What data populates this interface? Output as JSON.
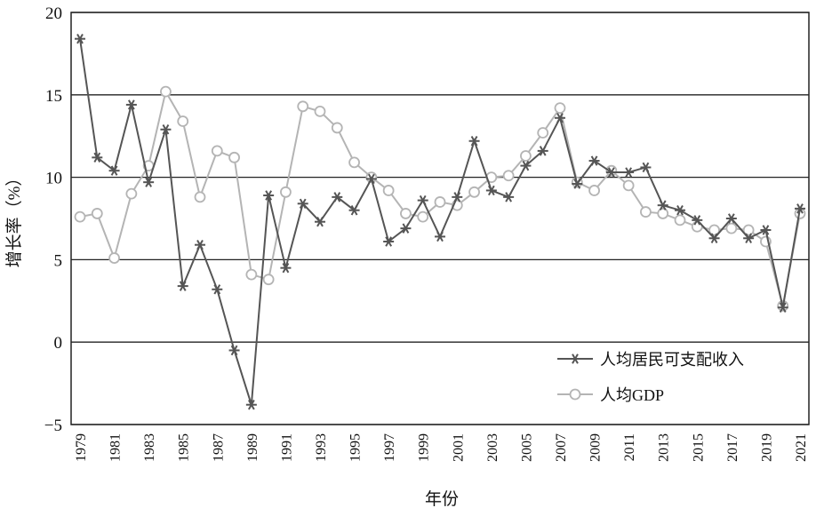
{
  "chart_data": {
    "type": "line",
    "xlabel": "年份",
    "ylabel": "增长率（%）",
    "ylim": [
      -5,
      20
    ],
    "yticks": [
      "20",
      "15",
      "10",
      "5",
      "0",
      "−5"
    ],
    "grid": "horizontal",
    "legend_position": "bottom-right",
    "x": [
      1979,
      1980,
      1981,
      1982,
      1983,
      1984,
      1985,
      1986,
      1987,
      1988,
      1989,
      1990,
      1991,
      1992,
      1993,
      1994,
      1995,
      1996,
      1997,
      1998,
      1999,
      2000,
      2001,
      2002,
      2003,
      2004,
      2005,
      2006,
      2007,
      2008,
      2009,
      2010,
      2011,
      2012,
      2013,
      2014,
      2015,
      2016,
      2017,
      2018,
      2019,
      2020,
      2021
    ],
    "xtick_labels": [
      "1979",
      "1981",
      "1983",
      "1985",
      "1987",
      "1989",
      "1991",
      "1993",
      "1995",
      "1997",
      "1999",
      "2001",
      "2003",
      "2005",
      "2007",
      "2009",
      "2011",
      "2013",
      "2015",
      "2017",
      "2019",
      "2021"
    ],
    "series": [
      {
        "name": "人均居民可支配收入",
        "marker": "asterisk",
        "color": "#555555",
        "values": [
          18.4,
          11.2,
          10.4,
          14.4,
          9.7,
          12.9,
          3.4,
          5.9,
          3.2,
          -0.5,
          -3.8,
          8.9,
          4.5,
          8.4,
          7.3,
          8.8,
          8.0,
          9.9,
          6.1,
          6.9,
          8.6,
          6.4,
          8.8,
          12.2,
          9.2,
          8.8,
          10.7,
          11.6,
          13.6,
          9.6,
          11.0,
          10.3,
          10.3,
          10.6,
          8.3,
          8.0,
          7.4,
          6.3,
          7.5,
          6.3,
          6.8,
          2.1,
          8.1
        ]
      },
      {
        "name": "人均GDP",
        "marker": "circle",
        "color": "#b4b4b4",
        "values": [
          7.6,
          7.8,
          5.1,
          9.0,
          10.7,
          15.2,
          13.4,
          8.8,
          11.6,
          11.2,
          4.1,
          3.8,
          9.1,
          14.3,
          14.0,
          13.0,
          10.9,
          10.0,
          9.2,
          7.8,
          7.6,
          8.5,
          8.3,
          9.1,
          10.0,
          10.1,
          11.3,
          12.7,
          14.2,
          9.7,
          9.2,
          10.4,
          9.5,
          7.9,
          7.8,
          7.4,
          7.0,
          6.8,
          6.9,
          6.8,
          6.1,
          2.2,
          7.8
        ]
      }
    ]
  }
}
